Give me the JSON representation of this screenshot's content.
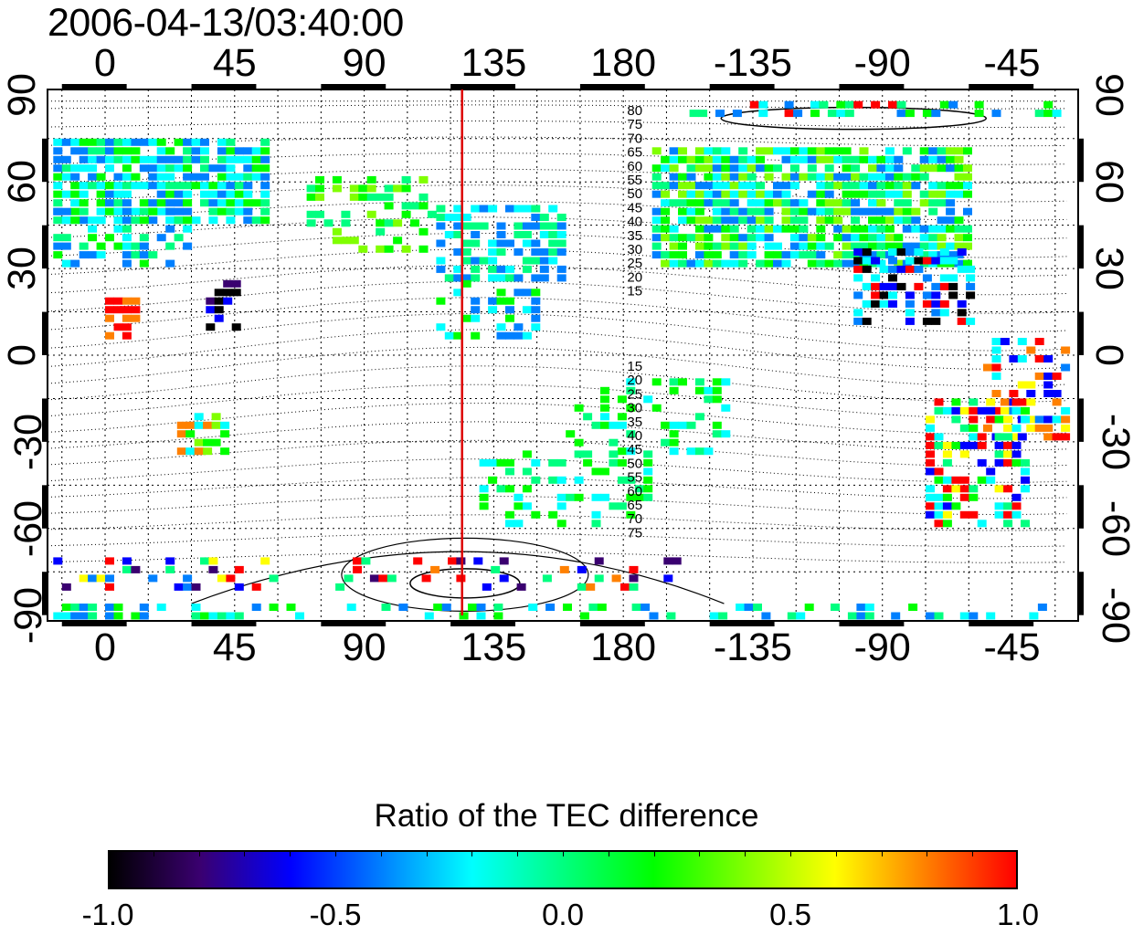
{
  "title": "2006-04-13/03:40:00",
  "map": {
    "lon_ticks": [
      "0",
      "45",
      "90",
      "135",
      "180",
      "-135",
      "-90",
      "-45"
    ],
    "lon_values": [
      0,
      45,
      90,
      135,
      180,
      225,
      270,
      315
    ],
    "lat_ticks_left": [
      "90",
      "60",
      "30",
      "0",
      "-30",
      "-60",
      "-90"
    ],
    "lat_ticks_right": [
      "90",
      "60",
      "30",
      "0",
      "-30",
      "-60",
      "-90"
    ],
    "lat_values": [
      90,
      60,
      30,
      0,
      -30,
      -60,
      -90
    ],
    "lon_range": [
      -20,
      338
    ],
    "lat_range": [
      -92,
      92
    ],
    "marker_line_lon": 124,
    "marker_line_color": "#dd0000",
    "contour_labels_north": [
      "80",
      "75",
      "70",
      "65",
      "60",
      "55",
      "50",
      "45",
      "40",
      "35",
      "30",
      "25",
      "20",
      "15"
    ],
    "contour_labels_south": [
      "15",
      "20",
      "25",
      "30",
      "35",
      "40",
      "45",
      "50",
      "55",
      "60",
      "65",
      "70",
      "75"
    ]
  },
  "colorbar": {
    "title": "Ratio of the TEC difference",
    "tick_labels": [
      "-1.0",
      "-0.5",
      "0.0",
      "0.5",
      "1.0"
    ],
    "range": [
      -1.0,
      1.0
    ],
    "colors": [
      "#000000",
      "#3a0070",
      "#0000ff",
      "#0080ff",
      "#00ffff",
      "#00ff80",
      "#00ff00",
      "#80ff00",
      "#ffff00",
      "#ff8000",
      "#ff0000"
    ]
  }
}
